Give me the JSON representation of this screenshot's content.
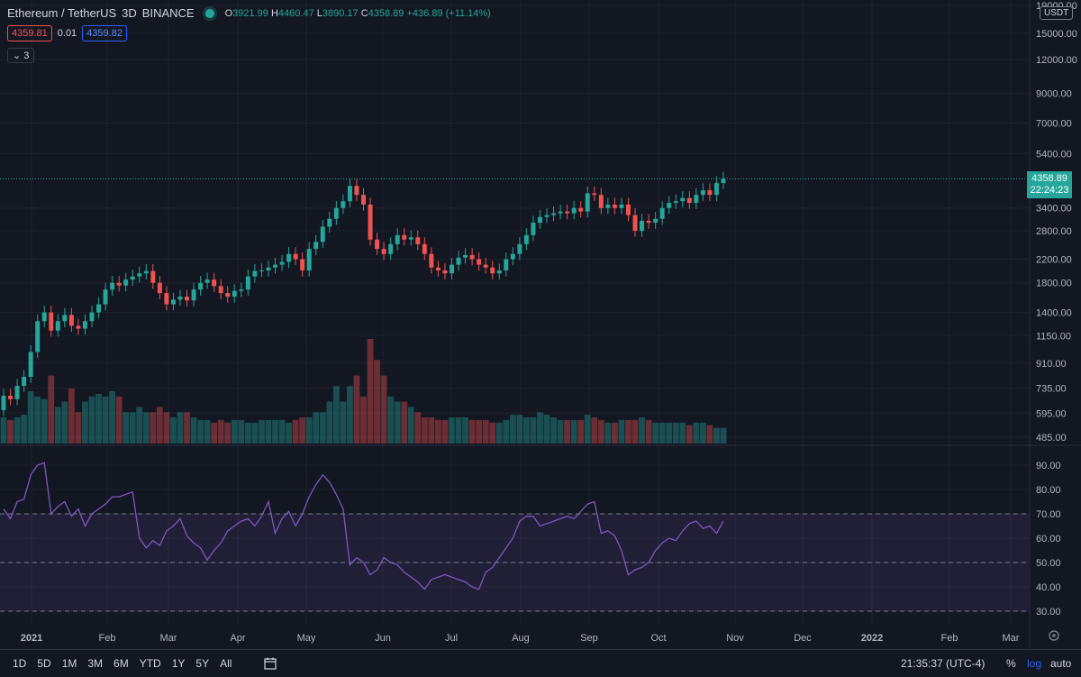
{
  "header": {
    "symbol": "Ethereum / TetherUS",
    "interval": "3D",
    "exchange": "BINANCE",
    "o_label": "O",
    "o": "3921.99",
    "h_label": "H",
    "h": "4460.47",
    "l_label": "L",
    "l": "3890.17",
    "c_label": "C",
    "c": "4358.89",
    "change": "+436.89 (+11.14%)"
  },
  "price_boxes": {
    "bid": "4359.81",
    "spread": "0.01",
    "ask": "4359.82"
  },
  "indicator_toggle": "3",
  "currency": "USDT",
  "last_price": {
    "price": "4358.89",
    "countdown": "22:24:23"
  },
  "bottom": {
    "ranges": [
      "1D",
      "5D",
      "1M",
      "3M",
      "6M",
      "YTD",
      "1Y",
      "5Y",
      "All"
    ],
    "time": "21:35:37 (UTC-4)",
    "percent": "%",
    "log": "log",
    "auto": "auto"
  },
  "colors": {
    "up": "#26a69a",
    "down": "#ef5350",
    "rsi": "#7e57c2",
    "bg": "#131722",
    "grid": "#1e222d"
  },
  "chart_data": [
    {
      "type": "candlestick",
      "title": "Ethereum / TetherUS 3D",
      "scale": "log",
      "ylim": [
        485,
        19000
      ],
      "y_ticks": [
        "485.00",
        "595.00",
        "735.00",
        "910.00",
        "1150.00",
        "1400.00",
        "1800.00",
        "2200.00",
        "2800.00",
        "3400.00",
        "4358.89",
        "5400.00",
        "7000.00",
        "9000.00",
        "12000.00",
        "15000.00",
        "19000.00"
      ],
      "x_ticks": [
        "2021",
        "Feb",
        "Mar",
        "Apr",
        "May",
        "Jun",
        "Jul",
        "Aug",
        "Sep",
        "Oct",
        "Nov",
        "Dec",
        "2022",
        "Feb",
        "Mar"
      ],
      "grid": true,
      "close": [
        690,
        670,
        750,
        810,
        1000,
        1300,
        1400,
        1200,
        1300,
        1370,
        1250,
        1220,
        1300,
        1400,
        1500,
        1700,
        1800,
        1760,
        1850,
        1900,
        1950,
        1990,
        1800,
        1650,
        1500,
        1560,
        1600,
        1550,
        1700,
        1800,
        1850,
        1750,
        1650,
        1600,
        1680,
        1700,
        1900,
        1990,
        2000,
        2050,
        2100,
        2150,
        2300,
        2200,
        2000,
        2400,
        2550,
        2900,
        3100,
        3400,
        3600,
        4100,
        3800,
        3500,
        2600,
        2400,
        2300,
        2500,
        2700,
        2600,
        2650,
        2500,
        2300,
        2050,
        2000,
        1950,
        2100,
        2230,
        2280,
        2200,
        2100,
        2050,
        1950,
        2000,
        2200,
        2300,
        2500,
        2700,
        3000,
        3150,
        3200,
        3250,
        3300,
        3250,
        3400,
        3300,
        3850,
        3800,
        3400,
        3500,
        3400,
        3500,
        3200,
        2800,
        3050,
        3000,
        3100,
        3400,
        3550,
        3600,
        3700,
        3550,
        3800,
        3950,
        3800,
        4200,
        4359
      ],
      "volume_relative": [
        0.5,
        0.45,
        0.5,
        0.55,
        1.0,
        0.9,
        0.85,
        1.3,
        0.7,
        0.8,
        1.05,
        0.6,
        0.8,
        0.9,
        0.95,
        0.9,
        1.0,
        0.9,
        0.6,
        0.6,
        0.7,
        0.6,
        0.6,
        0.7,
        0.6,
        0.5,
        0.6,
        0.6,
        0.5,
        0.45,
        0.45,
        0.4,
        0.45,
        0.4,
        0.45,
        0.45,
        0.4,
        0.4,
        0.45,
        0.45,
        0.45,
        0.45,
        0.4,
        0.45,
        0.5,
        0.5,
        0.6,
        0.6,
        0.8,
        1.1,
        0.8,
        1.1,
        1.3,
        0.9,
        2.0,
        1.6,
        1.3,
        0.9,
        0.8,
        0.8,
        0.7,
        0.6,
        0.5,
        0.5,
        0.45,
        0.45,
        0.5,
        0.5,
        0.5,
        0.45,
        0.45,
        0.45,
        0.4,
        0.4,
        0.45,
        0.55,
        0.55,
        0.5,
        0.5,
        0.6,
        0.55,
        0.5,
        0.45,
        0.45,
        0.45,
        0.45,
        0.55,
        0.5,
        0.45,
        0.4,
        0.4,
        0.45,
        0.45,
        0.45,
        0.5,
        0.45,
        0.4,
        0.4,
        0.4,
        0.4,
        0.4,
        0.35,
        0.4,
        0.4,
        0.35,
        0.3,
        0.3
      ]
    },
    {
      "type": "line",
      "title": "RSI",
      "ylim": [
        25,
        96
      ],
      "y_ticks": [
        "30.00",
        "40.00",
        "50.00",
        "60.00",
        "70.00",
        "80.00",
        "90.00"
      ],
      "band": [
        30,
        70
      ],
      "values": [
        72,
        68,
        75,
        76,
        86,
        90,
        91,
        70,
        73,
        75,
        69,
        72,
        65,
        70,
        72,
        74,
        77,
        77,
        78,
        79,
        60,
        56,
        59,
        57,
        63,
        65,
        68,
        61,
        58,
        56,
        51,
        55,
        58,
        63,
        65,
        67,
        68,
        65,
        69,
        75,
        62,
        68,
        71,
        65,
        70,
        77,
        82,
        86,
        83,
        78,
        72,
        49,
        52,
        50,
        45,
        47,
        52,
        50,
        49,
        46,
        44,
        42,
        39,
        43,
        44,
        45,
        44,
        43,
        42,
        40,
        39,
        46,
        48,
        52,
        56,
        60,
        67,
        69,
        69,
        65,
        66,
        67,
        68,
        69,
        68,
        71,
        74,
        75,
        62,
        63,
        61,
        55,
        45,
        47,
        48,
        50,
        55,
        58,
        60,
        59,
        63,
        66,
        67,
        64,
        65,
        62,
        67
      ]
    }
  ]
}
